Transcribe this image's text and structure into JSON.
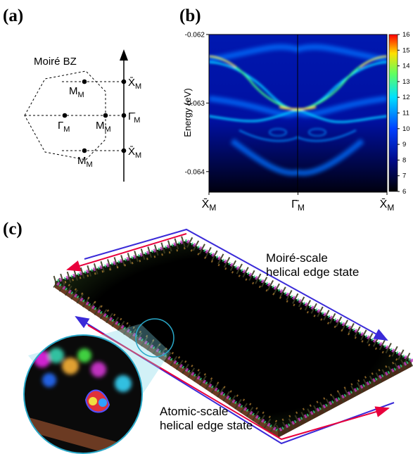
{
  "panel_a": {
    "label": "(a)",
    "title": "Moiré BZ",
    "points": [
      {
        "main": "M",
        "sub": "M"
      },
      {
        "main": "Γ",
        "sub": "M"
      },
      {
        "main": "M",
        "sub": "M"
      },
      {
        "main": "M",
        "sub": "M"
      }
    ],
    "axis_labels": [
      {
        "main": "X̄",
        "sub": "M"
      },
      {
        "main": "Γ̄",
        "sub": "M"
      },
      {
        "main": "X̄",
        "sub": "M"
      }
    ]
  },
  "panel_b": {
    "label": "(b)",
    "chart_data": {
      "type": "heatmap",
      "ylabel": "Energy (eV)",
      "categories": [
        {
          "main": "X̄",
          "sub": "M"
        },
        {
          "main": "Γ̄",
          "sub": "M"
        },
        {
          "main": "X̄",
          "sub": "M"
        }
      ],
      "ylim": [
        -0.0643,
        -0.062
      ],
      "yticks": [
        -0.062,
        -0.063,
        -0.064
      ],
      "colorbar": {
        "lim": [
          6,
          16
        ],
        "ticks": [
          6,
          7,
          8,
          9,
          10,
          11,
          12,
          13,
          14,
          15,
          16
        ]
      }
    }
  },
  "panel_c": {
    "label": "(c)",
    "annotations": [
      [
        "Moiré-scale",
        "helical edge state"
      ],
      [
        "Atomic-scale",
        "helical edge state"
      ]
    ]
  }
}
